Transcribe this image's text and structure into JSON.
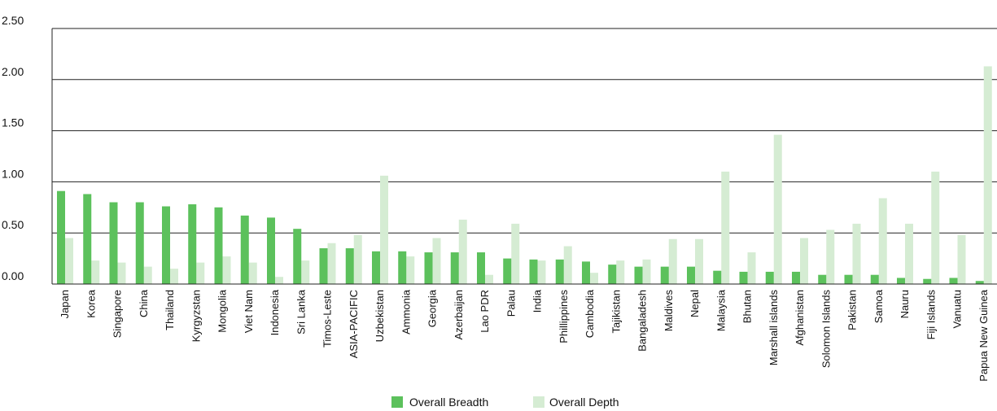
{
  "chart_data": {
    "type": "bar",
    "title": "",
    "xlabel": "",
    "ylabel": "",
    "ylim": [
      0,
      2.5
    ],
    "yticks": [
      "0.00",
      "0.50",
      "1.00",
      "1.50",
      "2.00",
      "2.50"
    ],
    "grid": "horizontal",
    "legend_position": "bottom-center",
    "categories": [
      "Japan",
      "Korea",
      "Singapore",
      "China",
      "Thailand",
      "Kyrgyzstan",
      "Mongolia",
      "Viet Nam",
      "Indonesia",
      "Sri Lanka",
      "Timos-Leste",
      "ASIA-PACIFIC",
      "Uzbekistan",
      "Ammonia",
      "Georgia",
      "Azerbaijan",
      "Lao PDR",
      "Palau",
      "India",
      "Phillippines",
      "Cambodia",
      "Tajikistan",
      "Bangaladesh",
      "Maldives",
      "Nepal",
      "Malaysia",
      "Bhutan",
      "Marshall islands",
      "Afghanistan",
      "Solomon Islands",
      "Pakistan",
      "Samoa",
      "Nauru",
      "Fiji Islands",
      "Vanuatu",
      "Papua New Guinea"
    ],
    "series": [
      {
        "name": "Overall Breadth",
        "color": "#5cc15c",
        "values": [
          0.91,
          0.88,
          0.8,
          0.8,
          0.76,
          0.78,
          0.75,
          0.67,
          0.65,
          0.54,
          0.35,
          0.35,
          0.32,
          0.32,
          0.31,
          0.31,
          0.31,
          0.25,
          0.24,
          0.24,
          0.22,
          0.19,
          0.17,
          0.17,
          0.17,
          0.13,
          0.12,
          0.12,
          0.12,
          0.09,
          0.09,
          0.09,
          0.06,
          0.05,
          0.06,
          0.03
        ]
      },
      {
        "name": "Overall Depth",
        "color": "#d5ecd3",
        "values": [
          0.45,
          0.23,
          0.21,
          0.17,
          0.15,
          0.21,
          0.27,
          0.21,
          0.07,
          0.23,
          0.4,
          0.48,
          1.06,
          0.27,
          0.45,
          0.63,
          0.09,
          0.59,
          0.23,
          0.37,
          0.11,
          0.23,
          0.24,
          0.44,
          0.44,
          1.1,
          0.31,
          1.46,
          0.45,
          0.53,
          0.59,
          0.84,
          0.59,
          1.1,
          0.48,
          2.13
        ]
      }
    ]
  }
}
